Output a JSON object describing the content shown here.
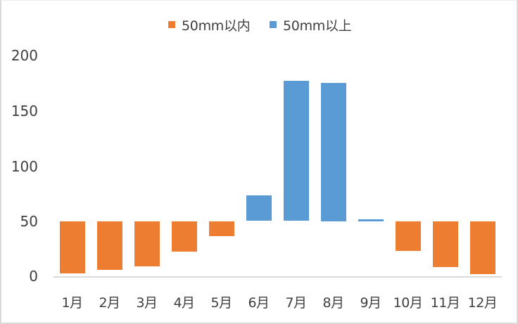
{
  "colors": {
    "below_50": "#ED7D31",
    "above_50": "#5B9BD5",
    "axis": "#D9D9D9",
    "text": "#404040",
    "border": "#D9D9D9"
  },
  "legend": {
    "items": [
      {
        "label": "50mm以内",
        "color": "#ED7D31"
      },
      {
        "label": "50mm以上",
        "color": "#5B9BD5"
      }
    ]
  },
  "y_axis": {
    "ticks": [
      "200",
      "150",
      "100",
      "50",
      "0"
    ]
  },
  "x_axis": {
    "labels": [
      "1月",
      "2月",
      "3月",
      "4月",
      "5月",
      "6月",
      "7月",
      "8月",
      "9月",
      "10月",
      "11月",
      "12月"
    ]
  },
  "chart_data": {
    "type": "bar",
    "title": "",
    "xlabel": "",
    "ylabel": "",
    "ylim": [
      0,
      200
    ],
    "baseline": 50,
    "grid": false,
    "legend_position": "top",
    "categories": [
      "1月",
      "2月",
      "3月",
      "4月",
      "5月",
      "6月",
      "7月",
      "8月",
      "9月",
      "10月",
      "11月",
      "12月"
    ],
    "values": [
      2.5,
      6,
      9,
      22,
      36,
      73,
      177,
      175,
      51,
      23,
      8,
      2
    ],
    "series": [
      {
        "name": "50mm以内",
        "color": "#ED7D31",
        "note": "floating bar spanning from value up to 50",
        "values": [
          2.5,
          6,
          9,
          22,
          36,
          null,
          null,
          null,
          null,
          23,
          8,
          2
        ]
      },
      {
        "name": "50mm以上",
        "color": "#5B9BD5",
        "note": "floating bar spanning from 50 up to value",
        "values": [
          null,
          null,
          null,
          null,
          null,
          73,
          177,
          175,
          51,
          null,
          null,
          null
        ]
      }
    ]
  }
}
